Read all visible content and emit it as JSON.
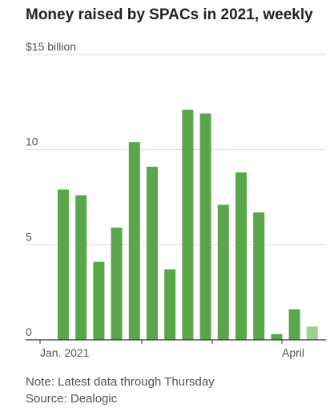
{
  "chart_data": {
    "type": "bar",
    "title": "Money raised by SPACs in 2021, weekly",
    "xlabel": "",
    "ylabel": "",
    "ylim": [
      0,
      15
    ],
    "y_ticks": [
      {
        "value": 15,
        "label": "$15 billion"
      },
      {
        "value": 10,
        "label": "10"
      },
      {
        "value": 5,
        "label": "5"
      },
      {
        "value": 0,
        "label": "0"
      }
    ],
    "x_labels": [
      "Jan. 2021",
      "April"
    ],
    "values": [
      7.9,
      7.6,
      4.1,
      5.9,
      10.4,
      9.1,
      3.7,
      12.1,
      11.9,
      7.1,
      8.8,
      6.7,
      0.3,
      1.6,
      0.7
    ],
    "partial_last": true,
    "colors": {
      "bar": "#5aa64a",
      "bar_partial": "#9fd08f",
      "grid": "#dddddd",
      "axis": "#333333"
    },
    "grid": true
  },
  "notes": {
    "note": "Note: Latest data through Thursday",
    "source": "Source: Dealogic"
  }
}
